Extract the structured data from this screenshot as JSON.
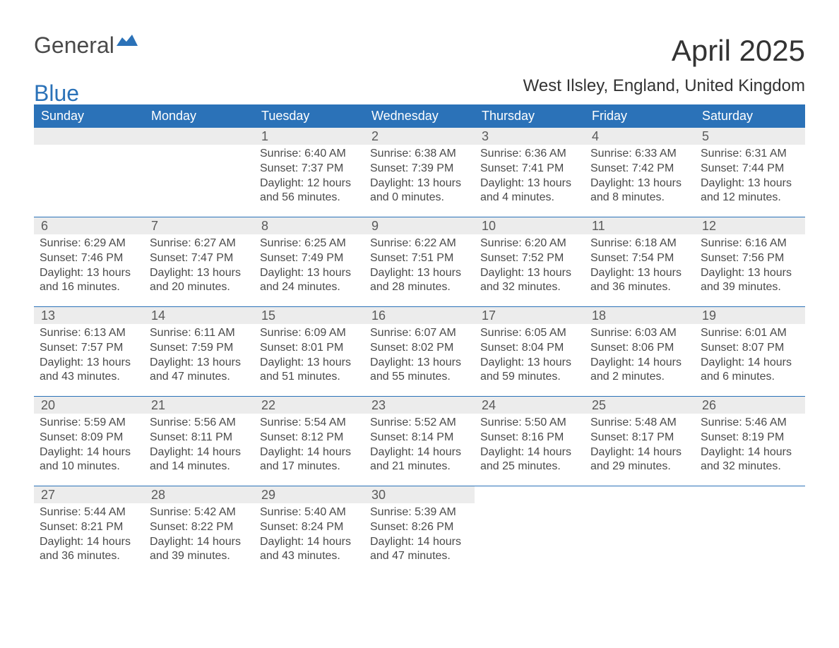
{
  "logo": {
    "text1": "General",
    "text2": "Blue",
    "color_general": "#4a4a4a",
    "color_blue": "#2b72b8"
  },
  "title": "April 2025",
  "subtitle": "West Ilsley, England, United Kingdom",
  "colors": {
    "header_bg": "#2b72b8",
    "header_text": "#ffffff",
    "daynum_bg": "#ececec",
    "body_text": "#4a4a4a",
    "page_bg": "#ffffff",
    "separator": "#2b72b8"
  },
  "typography": {
    "title_fontsize": 42,
    "subtitle_fontsize": 24,
    "dow_fontsize": 18,
    "daynum_fontsize": 18,
    "body_fontsize": 16
  },
  "days_of_week": [
    "Sunday",
    "Monday",
    "Tuesday",
    "Wednesday",
    "Thursday",
    "Friday",
    "Saturday"
  ],
  "weeks": [
    [
      {
        "day": "",
        "sunrise": "",
        "sunset": "",
        "daylight1": "",
        "daylight2": ""
      },
      {
        "day": "",
        "sunrise": "",
        "sunset": "",
        "daylight1": "",
        "daylight2": ""
      },
      {
        "day": "1",
        "sunrise": "Sunrise: 6:40 AM",
        "sunset": "Sunset: 7:37 PM",
        "daylight1": "Daylight: 12 hours",
        "daylight2": "and 56 minutes."
      },
      {
        "day": "2",
        "sunrise": "Sunrise: 6:38 AM",
        "sunset": "Sunset: 7:39 PM",
        "daylight1": "Daylight: 13 hours",
        "daylight2": "and 0 minutes."
      },
      {
        "day": "3",
        "sunrise": "Sunrise: 6:36 AM",
        "sunset": "Sunset: 7:41 PM",
        "daylight1": "Daylight: 13 hours",
        "daylight2": "and 4 minutes."
      },
      {
        "day": "4",
        "sunrise": "Sunrise: 6:33 AM",
        "sunset": "Sunset: 7:42 PM",
        "daylight1": "Daylight: 13 hours",
        "daylight2": "and 8 minutes."
      },
      {
        "day": "5",
        "sunrise": "Sunrise: 6:31 AM",
        "sunset": "Sunset: 7:44 PM",
        "daylight1": "Daylight: 13 hours",
        "daylight2": "and 12 minutes."
      }
    ],
    [
      {
        "day": "6",
        "sunrise": "Sunrise: 6:29 AM",
        "sunset": "Sunset: 7:46 PM",
        "daylight1": "Daylight: 13 hours",
        "daylight2": "and 16 minutes."
      },
      {
        "day": "7",
        "sunrise": "Sunrise: 6:27 AM",
        "sunset": "Sunset: 7:47 PM",
        "daylight1": "Daylight: 13 hours",
        "daylight2": "and 20 minutes."
      },
      {
        "day": "8",
        "sunrise": "Sunrise: 6:25 AM",
        "sunset": "Sunset: 7:49 PM",
        "daylight1": "Daylight: 13 hours",
        "daylight2": "and 24 minutes."
      },
      {
        "day": "9",
        "sunrise": "Sunrise: 6:22 AM",
        "sunset": "Sunset: 7:51 PM",
        "daylight1": "Daylight: 13 hours",
        "daylight2": "and 28 minutes."
      },
      {
        "day": "10",
        "sunrise": "Sunrise: 6:20 AM",
        "sunset": "Sunset: 7:52 PM",
        "daylight1": "Daylight: 13 hours",
        "daylight2": "and 32 minutes."
      },
      {
        "day": "11",
        "sunrise": "Sunrise: 6:18 AM",
        "sunset": "Sunset: 7:54 PM",
        "daylight1": "Daylight: 13 hours",
        "daylight2": "and 36 minutes."
      },
      {
        "day": "12",
        "sunrise": "Sunrise: 6:16 AM",
        "sunset": "Sunset: 7:56 PM",
        "daylight1": "Daylight: 13 hours",
        "daylight2": "and 39 minutes."
      }
    ],
    [
      {
        "day": "13",
        "sunrise": "Sunrise: 6:13 AM",
        "sunset": "Sunset: 7:57 PM",
        "daylight1": "Daylight: 13 hours",
        "daylight2": "and 43 minutes."
      },
      {
        "day": "14",
        "sunrise": "Sunrise: 6:11 AM",
        "sunset": "Sunset: 7:59 PM",
        "daylight1": "Daylight: 13 hours",
        "daylight2": "and 47 minutes."
      },
      {
        "day": "15",
        "sunrise": "Sunrise: 6:09 AM",
        "sunset": "Sunset: 8:01 PM",
        "daylight1": "Daylight: 13 hours",
        "daylight2": "and 51 minutes."
      },
      {
        "day": "16",
        "sunrise": "Sunrise: 6:07 AM",
        "sunset": "Sunset: 8:02 PM",
        "daylight1": "Daylight: 13 hours",
        "daylight2": "and 55 minutes."
      },
      {
        "day": "17",
        "sunrise": "Sunrise: 6:05 AM",
        "sunset": "Sunset: 8:04 PM",
        "daylight1": "Daylight: 13 hours",
        "daylight2": "and 59 minutes."
      },
      {
        "day": "18",
        "sunrise": "Sunrise: 6:03 AM",
        "sunset": "Sunset: 8:06 PM",
        "daylight1": "Daylight: 14 hours",
        "daylight2": "and 2 minutes."
      },
      {
        "day": "19",
        "sunrise": "Sunrise: 6:01 AM",
        "sunset": "Sunset: 8:07 PM",
        "daylight1": "Daylight: 14 hours",
        "daylight2": "and 6 minutes."
      }
    ],
    [
      {
        "day": "20",
        "sunrise": "Sunrise: 5:59 AM",
        "sunset": "Sunset: 8:09 PM",
        "daylight1": "Daylight: 14 hours",
        "daylight2": "and 10 minutes."
      },
      {
        "day": "21",
        "sunrise": "Sunrise: 5:56 AM",
        "sunset": "Sunset: 8:11 PM",
        "daylight1": "Daylight: 14 hours",
        "daylight2": "and 14 minutes."
      },
      {
        "day": "22",
        "sunrise": "Sunrise: 5:54 AM",
        "sunset": "Sunset: 8:12 PM",
        "daylight1": "Daylight: 14 hours",
        "daylight2": "and 17 minutes."
      },
      {
        "day": "23",
        "sunrise": "Sunrise: 5:52 AM",
        "sunset": "Sunset: 8:14 PM",
        "daylight1": "Daylight: 14 hours",
        "daylight2": "and 21 minutes."
      },
      {
        "day": "24",
        "sunrise": "Sunrise: 5:50 AM",
        "sunset": "Sunset: 8:16 PM",
        "daylight1": "Daylight: 14 hours",
        "daylight2": "and 25 minutes."
      },
      {
        "day": "25",
        "sunrise": "Sunrise: 5:48 AM",
        "sunset": "Sunset: 8:17 PM",
        "daylight1": "Daylight: 14 hours",
        "daylight2": "and 29 minutes."
      },
      {
        "day": "26",
        "sunrise": "Sunrise: 5:46 AM",
        "sunset": "Sunset: 8:19 PM",
        "daylight1": "Daylight: 14 hours",
        "daylight2": "and 32 minutes."
      }
    ],
    [
      {
        "day": "27",
        "sunrise": "Sunrise: 5:44 AM",
        "sunset": "Sunset: 8:21 PM",
        "daylight1": "Daylight: 14 hours",
        "daylight2": "and 36 minutes."
      },
      {
        "day": "28",
        "sunrise": "Sunrise: 5:42 AM",
        "sunset": "Sunset: 8:22 PM",
        "daylight1": "Daylight: 14 hours",
        "daylight2": "and 39 minutes."
      },
      {
        "day": "29",
        "sunrise": "Sunrise: 5:40 AM",
        "sunset": "Sunset: 8:24 PM",
        "daylight1": "Daylight: 14 hours",
        "daylight2": "and 43 minutes."
      },
      {
        "day": "30",
        "sunrise": "Sunrise: 5:39 AM",
        "sunset": "Sunset: 8:26 PM",
        "daylight1": "Daylight: 14 hours",
        "daylight2": "and 47 minutes."
      },
      {
        "day": "",
        "sunrise": "",
        "sunset": "",
        "daylight1": "",
        "daylight2": ""
      },
      {
        "day": "",
        "sunrise": "",
        "sunset": "",
        "daylight1": "",
        "daylight2": ""
      },
      {
        "day": "",
        "sunrise": "",
        "sunset": "",
        "daylight1": "",
        "daylight2": ""
      }
    ]
  ]
}
